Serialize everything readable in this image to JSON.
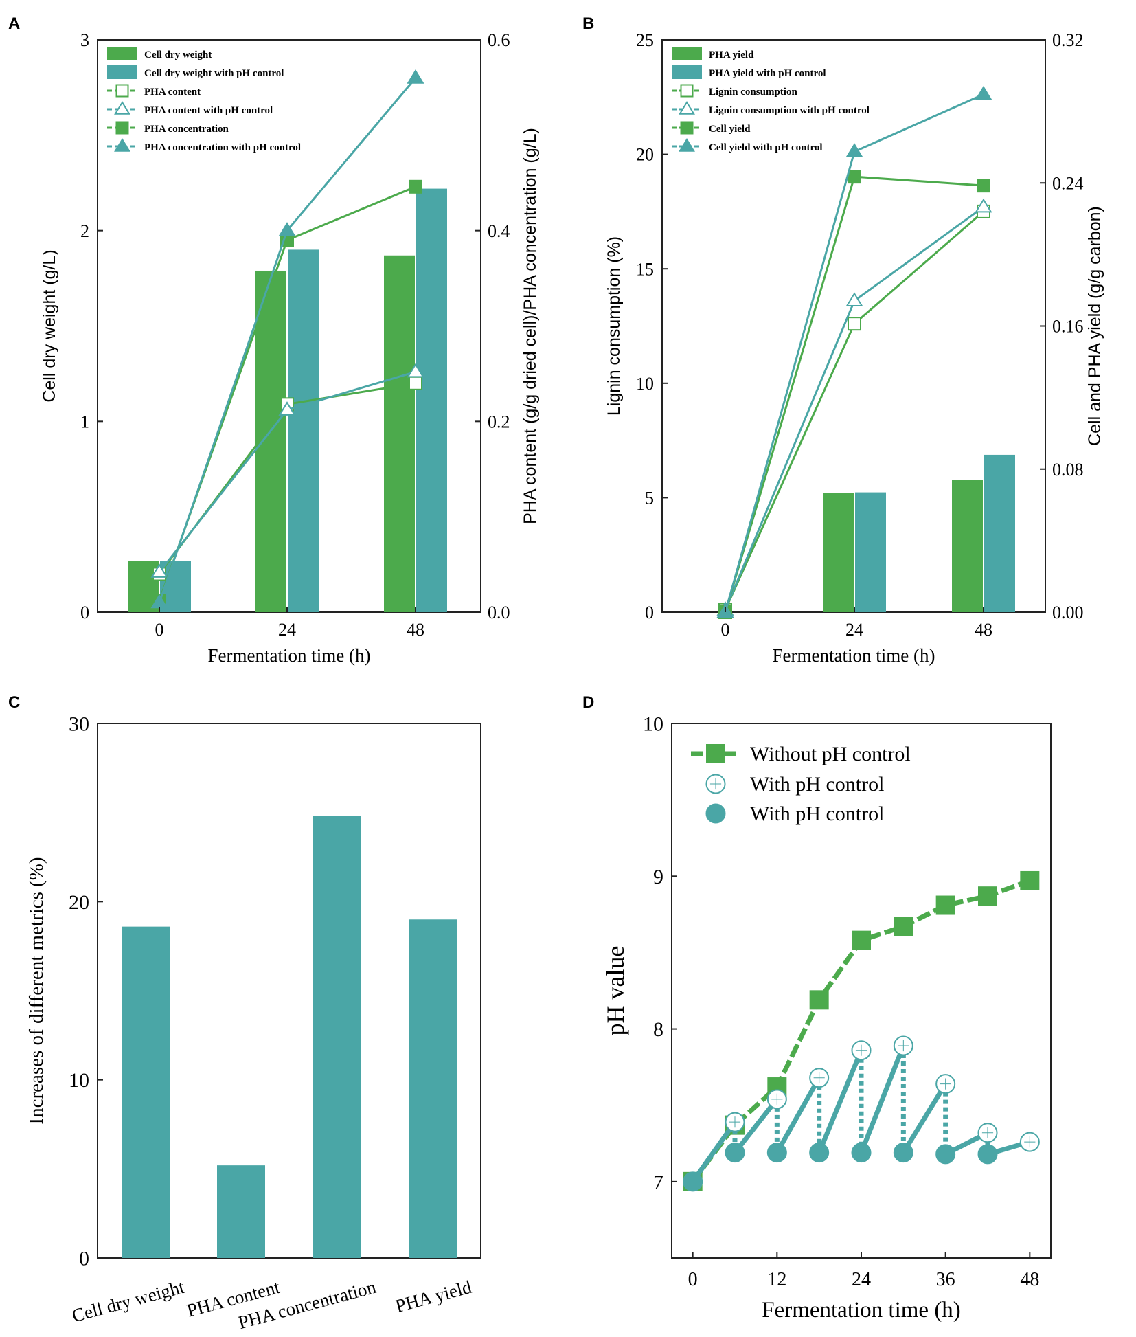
{
  "colors": {
    "green": "#4caa4c",
    "teal": "#4aa6a6",
    "axis": "#222222"
  },
  "chart_data": [
    {
      "panel": "A",
      "type": "bar+line",
      "xlabel": "Fermentation time (h)",
      "ylabel_left": "Cell dry weight (g/L)",
      "ylabel_right": "PHA content (g/g dried cell)/PHA concentration (g/L)",
      "categories": [
        "0",
        "24",
        "48"
      ],
      "yticks_left": [
        "0",
        "1",
        "2",
        "3"
      ],
      "yticks_right": [
        "0.0",
        "0.2",
        "0.4",
        "0.6"
      ],
      "ylim_left": [
        0,
        3
      ],
      "ylim_right": [
        0,
        0.6
      ],
      "bars": [
        {
          "name": "Cell dry weight",
          "color": "green",
          "values": [
            0.27,
            1.79,
            1.87
          ]
        },
        {
          "name": "Cell dry weight with pH control",
          "color": "teal",
          "values": [
            0.27,
            1.9,
            2.22
          ]
        }
      ],
      "lines": [
        {
          "name": "PHA content",
          "color": "green",
          "marker": "square-open",
          "axis": "right",
          "values": [
            0.04,
            0.218,
            0.24
          ]
        },
        {
          "name": "PHA content with pH control",
          "color": "teal",
          "marker": "triangle-open",
          "axis": "right",
          "values": [
            0.042,
            0.212,
            0.252
          ]
        },
        {
          "name": "PHA concentration",
          "color": "green",
          "marker": "square-filled",
          "axis": "right",
          "values": [
            0.012,
            0.39,
            0.446
          ]
        },
        {
          "name": "PHA concentration with pH control",
          "color": "teal",
          "marker": "triangle-filled",
          "axis": "right",
          "values": [
            0.01,
            0.4,
            0.56
          ]
        }
      ],
      "legend": "top-left"
    },
    {
      "panel": "B",
      "type": "bar+line",
      "xlabel": "Fermentation time (h)",
      "ylabel_left": "Lignin consumption (%)",
      "ylabel_right": "Cell and PHA yield (g/g carbon)",
      "categories": [
        "0",
        "24",
        "48"
      ],
      "yticks_left": [
        "0",
        "5",
        "10",
        "15",
        "20",
        "25"
      ],
      "yticks_right": [
        "0.00",
        "0.08",
        "0.16",
        "0.24",
        "0.32"
      ],
      "ylim_left": [
        0,
        25
      ],
      "ylim_right": [
        0,
        0.32
      ],
      "bars": [
        {
          "name": "PHA yield",
          "color": "green",
          "axis": "right",
          "values": [
            0,
            0.0665,
            0.074
          ]
        },
        {
          "name": "PHA yield with pH control",
          "color": "teal",
          "axis": "right",
          "values": [
            0,
            0.067,
            0.088
          ]
        }
      ],
      "lines": [
        {
          "name": "Lignin consumption",
          "color": "green",
          "marker": "square-open",
          "axis": "left",
          "values": [
            0.1,
            12.6,
            17.5
          ]
        },
        {
          "name": "Lignin consumption with pH control",
          "color": "teal",
          "marker": "triangle-open",
          "axis": "left",
          "values": [
            0.1,
            13.6,
            17.7
          ]
        },
        {
          "name": "Cell yield",
          "color": "green",
          "marker": "square-filled",
          "axis": "right",
          "values": [
            0.0,
            0.2435,
            0.2385
          ]
        },
        {
          "name": "Cell yield with pH control",
          "color": "teal",
          "marker": "triangle-filled",
          "axis": "right",
          "values": [
            0.0,
            0.2575,
            0.2895
          ]
        }
      ],
      "legend": "top-left"
    },
    {
      "panel": "C",
      "type": "bar",
      "ylabel": "Increases of different metrics (%)",
      "categories": [
        "Cell dry weight",
        "PHA content",
        "PHA concentration",
        "PHA yield"
      ],
      "values": [
        18.6,
        5.2,
        24.8,
        19.0
      ],
      "yticks": [
        "0",
        "10",
        "20",
        "30"
      ],
      "ylim": [
        0,
        30
      ],
      "color": "teal"
    },
    {
      "panel": "D",
      "type": "line",
      "xlabel": "Fermentation time (h)",
      "ylabel": "pH value",
      "xticks": [
        "0",
        "12",
        "24",
        "36",
        "48"
      ],
      "yticks": [
        "7",
        "8",
        "9",
        "10"
      ],
      "xlim": [
        -3,
        51
      ],
      "ylim": [
        6.5,
        10
      ],
      "series": [
        {
          "name": "Without pH control",
          "marker": "square-filled",
          "color": "green",
          "x": [
            0,
            6,
            12,
            18,
            24,
            30,
            36,
            42,
            48
          ],
          "y": [
            7.0,
            7.37,
            7.62,
            8.19,
            8.58,
            8.67,
            8.81,
            8.87,
            8.97
          ]
        },
        {
          "name": "With pH control",
          "marker": "circle-open",
          "color": "teal",
          "x": [
            6,
            12,
            18,
            24,
            30,
            36,
            42,
            48
          ],
          "y": [
            7.39,
            7.54,
            7.68,
            7.86,
            7.89,
            7.64,
            7.32,
            7.26
          ]
        },
        {
          "name": "With pH control",
          "marker": "circle-filled",
          "color": "teal",
          "x": [
            0,
            6,
            12,
            18,
            24,
            30,
            36,
            42
          ],
          "y": [
            7.0,
            7.19,
            7.19,
            7.19,
            7.19,
            7.19,
            7.18,
            7.18
          ]
        }
      ],
      "legend": "top-left"
    }
  ]
}
